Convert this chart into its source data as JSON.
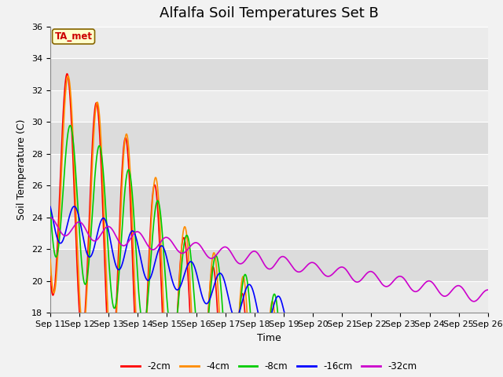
{
  "title": "Alfalfa Soil Temperatures Set B",
  "xlabel": "Time",
  "ylabel": "Soil Temperature (C)",
  "ylim": [
    18,
    36
  ],
  "xlim": [
    0,
    15
  ],
  "xtick_labels": [
    "Sep 11",
    "Sep 12",
    "Sep 13",
    "Sep 14",
    "Sep 15",
    "Sep 16",
    "Sep 17",
    "Sep 18",
    "Sep 19",
    "Sep 20",
    "Sep 21",
    "Sep 22",
    "Sep 23",
    "Sep 24",
    "Sep 25",
    "Sep 26"
  ],
  "ytick_labels": [
    18,
    20,
    22,
    24,
    26,
    28,
    30,
    32,
    34,
    36
  ],
  "series_colors": {
    "-2cm": "#FF0000",
    "-4cm": "#FF8C00",
    "-8cm": "#00CC00",
    "-16cm": "#0000FF",
    "-32cm": "#CC00CC"
  },
  "line_width": 1.2,
  "annotation_text": "TA_met",
  "annotation_color": "#CC0000",
  "annotation_bg": "#FFFFCC",
  "band_colors": [
    "#E8E8E8",
    "#D8D8D8"
  ],
  "grid_color": "#FFFFFF",
  "title_fontsize": 13,
  "axis_fontsize": 9,
  "tick_fontsize": 8
}
